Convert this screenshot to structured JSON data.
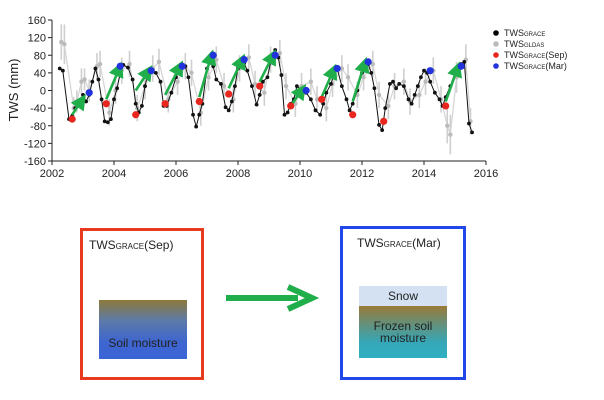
{
  "chart_data": {
    "type": "scatter",
    "title": "",
    "xlabel": "",
    "ylabel": "TWS (mm)",
    "xlim": [
      2002,
      2016
    ],
    "ylim": [
      -160,
      160
    ],
    "xticks": [
      "2002",
      "2004",
      "2006",
      "2008",
      "2010",
      "2012",
      "2014",
      "2016"
    ],
    "yticks": [
      "160",
      "120",
      "80",
      "40",
      "0",
      "-40",
      "-80",
      "-120",
      "-160"
    ],
    "legend_position": "top-right",
    "series": [
      {
        "name": "TWS_GRACE",
        "label_main": "TWS",
        "label_sub": "GRACE",
        "color": "#000000",
        "style": "line-markers",
        "x": [
          2002.25,
          2002.35,
          2002.55,
          2002.65,
          2002.75,
          2002.85,
          2003.0,
          2003.1,
          2003.2,
          2003.3,
          2003.4,
          2003.5,
          2003.6,
          2003.7,
          2003.8,
          2003.9,
          2004.0,
          2004.1,
          2004.2,
          2004.3,
          2004.45,
          2004.6,
          2004.7,
          2004.8,
          2004.9,
          2005.0,
          2005.1,
          2005.2,
          2005.35,
          2005.5,
          2005.6,
          2005.7,
          2005.85,
          2006.0,
          2006.1,
          2006.2,
          2006.3,
          2006.4,
          2006.55,
          2006.65,
          2006.75,
          2006.85,
          2007.0,
          2007.1,
          2007.2,
          2007.3,
          2007.45,
          2007.6,
          2007.7,
          2007.8,
          2007.9,
          2008.0,
          2008.1,
          2008.2,
          2008.3,
          2008.45,
          2008.6,
          2008.7,
          2008.8,
          2008.95,
          2009.1,
          2009.2,
          2009.3,
          2009.4,
          2009.5,
          2009.6,
          2009.7,
          2009.8,
          2009.9,
          2010.05,
          2010.2,
          2010.35,
          2010.5,
          2010.65,
          2010.75,
          2010.85,
          2011.0,
          2011.1,
          2011.2,
          2011.35,
          2011.5,
          2011.6,
          2011.7,
          2011.85,
          2012.0,
          2012.1,
          2012.2,
          2012.3,
          2012.4,
          2012.55,
          2012.65,
          2012.75,
          2012.9,
          2013.0,
          2013.1,
          2013.2,
          2013.35,
          2013.5,
          2013.6,
          2013.7,
          2013.8,
          2013.9,
          2014.0,
          2014.1,
          2014.2,
          2014.35,
          2014.5,
          2014.6,
          2014.7,
          2014.85,
          2015.0,
          2015.1,
          2015.2,
          2015.3,
          2015.45,
          2015.55
        ],
        "y": [
          50,
          45,
          -65,
          -58,
          -40,
          -35,
          -10,
          -25,
          -10,
          20,
          50,
          25,
          -20,
          -70,
          -72,
          -65,
          -20,
          5,
          40,
          58,
          52,
          25,
          -30,
          -50,
          -35,
          10,
          40,
          45,
          40,
          20,
          -35,
          -35,
          -5,
          30,
          55,
          56,
          55,
          30,
          -55,
          -82,
          -55,
          -30,
          50,
          65,
          55,
          25,
          15,
          -38,
          -45,
          -25,
          10,
          50,
          60,
          62,
          45,
          10,
          -32,
          -10,
          20,
          30,
          80,
          92,
          75,
          35,
          -55,
          -50,
          -30,
          -20,
          10,
          2,
          -5,
          -20,
          -45,
          -55,
          -30,
          -5,
          15,
          40,
          50,
          10,
          -20,
          -45,
          -30,
          0,
          40,
          55,
          60,
          40,
          5,
          -78,
          -90,
          -40,
          15,
          20,
          5,
          15,
          10,
          -20,
          -30,
          -10,
          10,
          30,
          45,
          40,
          20,
          -5,
          -20,
          -35,
          -15,
          10,
          40,
          55,
          60,
          65,
          -75,
          -95
        ]
      },
      {
        "name": "TWS_GLDAS",
        "label_main": "TWS",
        "label_sub": "GLDAS",
        "color": "#bbbbbb",
        "style": "markers-errorbars",
        "x": [
          2002.3,
          2002.4,
          2002.7,
          2002.8,
          2002.95,
          2003.05,
          2003.2,
          2003.45,
          2003.55,
          2003.85,
          2004.05,
          2004.25,
          2004.5,
          2004.75,
          2005.0,
          2005.25,
          2005.45,
          2005.75,
          2006.05,
          2006.3,
          2006.5,
          2006.8,
          2007.05,
          2007.3,
          2007.55,
          2007.85,
          2008.05,
          2008.35,
          2008.55,
          2008.85,
          2009.05,
          2009.35,
          2009.55,
          2009.85,
          2010.05,
          2010.35,
          2010.55,
          2010.85,
          2011.05,
          2011.35,
          2011.55,
          2011.85,
          2012.05,
          2012.35,
          2012.55,
          2012.85,
          2013.05,
          2013.35,
          2013.55,
          2013.85,
          2014.05,
          2014.3,
          2014.55,
          2014.75,
          2014.85,
          2015.05,
          2015.35,
          2015.5
        ],
        "y": [
          110,
          105,
          -40,
          -25,
          20,
          25,
          0,
          55,
          60,
          -50,
          0,
          45,
          60,
          -40,
          10,
          50,
          65,
          -20,
          20,
          55,
          40,
          -50,
          30,
          70,
          10,
          -20,
          50,
          75,
          15,
          -5,
          70,
          85,
          10,
          -30,
          10,
          20,
          -20,
          -40,
          15,
          50,
          30,
          -10,
          30,
          60,
          -10,
          -35,
          10,
          20,
          -25,
          -10,
          20,
          45,
          -20,
          -80,
          -100,
          30,
          70,
          -70
        ],
        "err": [
          40,
          45,
          25,
          25,
          30,
          25,
          25,
          30,
          30,
          30,
          30,
          30,
          30,
          30,
          30,
          30,
          30,
          30,
          30,
          30,
          30,
          30,
          30,
          30,
          30,
          30,
          30,
          30,
          30,
          30,
          30,
          30,
          30,
          30,
          30,
          30,
          30,
          30,
          30,
          30,
          30,
          30,
          30,
          30,
          30,
          30,
          30,
          30,
          30,
          30,
          30,
          30,
          30,
          40,
          45,
          35,
          35,
          30
        ]
      },
      {
        "name": "TWS_GRACE(Sep)",
        "label_main": "TWS",
        "label_sub": "GRACE",
        "label_suffix": "(Sep)",
        "color": "#e8261e",
        "style": "markers",
        "x": [
          2002.65,
          2003.75,
          2004.7,
          2005.65,
          2006.75,
          2007.7,
          2008.7,
          2009.7,
          2010.7,
          2011.7,
          2012.7,
          2014.7
        ],
        "y": [
          -65,
          -30,
          -55,
          -30,
          -25,
          -8,
          10,
          -35,
          -20,
          -55,
          -70,
          -35
        ]
      },
      {
        "name": "TWS_GRACE(Mar)",
        "label_main": "TWS",
        "label_sub": "GRACE",
        "label_suffix": "(Mar)",
        "color": "#2233dd",
        "style": "markers",
        "x": [
          2003.2,
          2004.2,
          2005.2,
          2006.2,
          2007.2,
          2008.2,
          2009.2,
          2010.2,
          2011.2,
          2012.2,
          2014.2,
          2015.2
        ],
        "y": [
          -5,
          55,
          45,
          55,
          80,
          70,
          80,
          0,
          50,
          65,
          45,
          55
        ]
      }
    ],
    "arrows": [
      {
        "x1": 2002.65,
        "y1": -55,
        "x2": 2003.0,
        "y2": -18
      },
      {
        "x1": 2003.75,
        "y1": -20,
        "x2": 2004.2,
        "y2": 55
      },
      {
        "x1": 2004.7,
        "y1": 0,
        "x2": 2005.15,
        "y2": 48
      },
      {
        "x1": 2005.65,
        "y1": -10,
        "x2": 2006.15,
        "y2": 58
      },
      {
        "x1": 2006.75,
        "y1": -15,
        "x2": 2007.15,
        "y2": 82
      },
      {
        "x1": 2007.7,
        "y1": 5,
        "x2": 2008.15,
        "y2": 73
      },
      {
        "x1": 2008.7,
        "y1": 20,
        "x2": 2009.15,
        "y2": 83
      },
      {
        "x1": 2009.7,
        "y1": -35,
        "x2": 2010.1,
        "y2": 5
      },
      {
        "x1": 2010.7,
        "y1": -15,
        "x2": 2011.1,
        "y2": 50
      },
      {
        "x1": 2011.7,
        "y1": -25,
        "x2": 2012.1,
        "y2": 65
      },
      {
        "x1": 2014.7,
        "y1": -25,
        "x2": 2015.1,
        "y2": 55
      }
    ]
  },
  "diagram": {
    "sep_box": {
      "title_main": "TWS",
      "title_sub": "GRACE",
      "title_suffix": "(Sep)",
      "layer_label": "Soil moisture",
      "border_color": "#e83a1f"
    },
    "mar_box": {
      "title_main": "TWS",
      "title_sub": "GRACE",
      "title_suffix": "(Mar)",
      "snow_label": "Snow",
      "frozen_label_line1": "Frozen soil",
      "frozen_label_line2": "moisture",
      "border_color": "#2147e8"
    },
    "arrow_color": "#1fae4a"
  }
}
